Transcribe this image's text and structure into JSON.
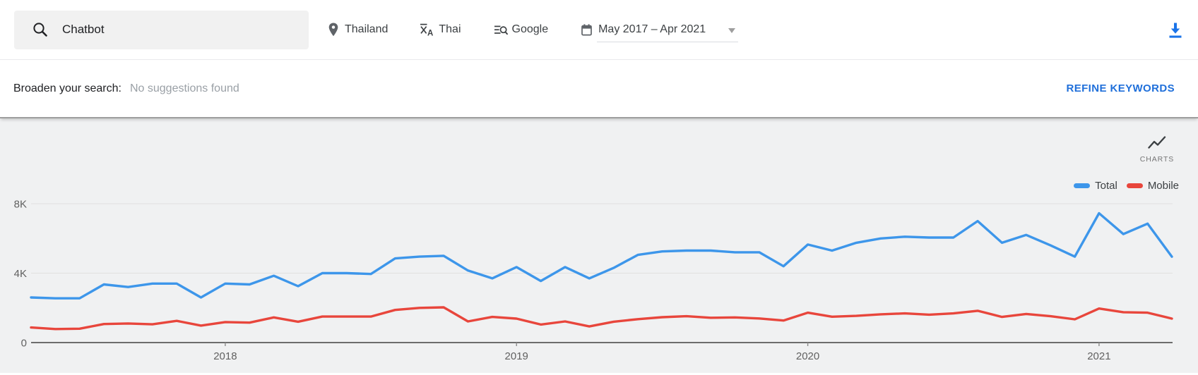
{
  "toolbar": {
    "search_value": "Chatbot",
    "location": "Thailand",
    "language": "Thai",
    "engine": "Google",
    "date_range": "May 2017 – Apr 2021"
  },
  "suggestions": {
    "label": "Broaden your search:",
    "message": "No suggestions found",
    "refine_label": "REFINE KEYWORDS"
  },
  "chart": {
    "widget_label": "CHARTS"
  },
  "colors": {
    "accent_blue": "#1a73e8",
    "refine_blue": "#1f6fda",
    "chart_background": "#f0f1f2",
    "grid_line": "#e0e0e0",
    "axis_line": "#6d6d6d",
    "axis_label": "#616161"
  },
  "chart_data": {
    "type": "line",
    "x": [
      "May 2017",
      "Jun 2017",
      "Jul 2017",
      "Aug 2017",
      "Sep 2017",
      "Oct 2017",
      "Nov 2017",
      "Dec 2017",
      "Jan 2018",
      "Feb 2018",
      "Mar 2018",
      "Apr 2018",
      "May 2018",
      "Jun 2018",
      "Jul 2018",
      "Aug 2018",
      "Sep 2018",
      "Oct 2018",
      "Nov 2018",
      "Dec 2018",
      "Jan 2019",
      "Feb 2019",
      "Mar 2019",
      "Apr 2019",
      "May 2019",
      "Jun 2019",
      "Jul 2019",
      "Aug 2019",
      "Sep 2019",
      "Oct 2019",
      "Nov 2019",
      "Dec 2019",
      "Jan 2020",
      "Feb 2020",
      "Mar 2020",
      "Apr 2020",
      "May 2020",
      "Jun 2020",
      "Jul 2020",
      "Aug 2020",
      "Sep 2020",
      "Oct 2020",
      "Nov 2020",
      "Dec 2020",
      "Jan 2021",
      "Feb 2021",
      "Mar 2021",
      "Apr 2021"
    ],
    "series": [
      {
        "name": "Total",
        "color": "#3d96ea",
        "values": [
          2600,
          2550,
          2550,
          3350,
          3200,
          3400,
          3400,
          2600,
          3400,
          3350,
          3850,
          3250,
          4000,
          4000,
          3950,
          4850,
          4950,
          5000,
          4150,
          3700,
          4350,
          3550,
          4350,
          3700,
          4300,
          5050,
          5250,
          5300,
          5300,
          5200,
          5200,
          4400,
          5650,
          5300,
          5750,
          6000,
          6100,
          6050,
          6050,
          7000,
          5750,
          6200,
          5600,
          4950,
          7450,
          6250,
          6850,
          4950
        ]
      },
      {
        "name": "Mobile",
        "color": "#e8463c",
        "values": [
          870,
          780,
          800,
          1070,
          1100,
          1050,
          1250,
          980,
          1180,
          1150,
          1450,
          1200,
          1500,
          1500,
          1500,
          1880,
          2000,
          2030,
          1220,
          1480,
          1380,
          1040,
          1220,
          930,
          1200,
          1350,
          1460,
          1520,
          1430,
          1450,
          1390,
          1270,
          1720,
          1490,
          1540,
          1630,
          1680,
          1610,
          1680,
          1830,
          1480,
          1650,
          1520,
          1340,
          1960,
          1750,
          1720,
          1380
        ]
      }
    ],
    "y_ticks": [
      {
        "value": 0,
        "label": "0"
      },
      {
        "value": 4000,
        "label": "4K"
      },
      {
        "value": 8000,
        "label": "8K"
      }
    ],
    "x_ticks": [
      {
        "label": "2018",
        "month_index": 8
      },
      {
        "label": "2019",
        "month_index": 20
      },
      {
        "label": "2020",
        "month_index": 32
      },
      {
        "label": "2021",
        "month_index": 44
      }
    ],
    "ylim": [
      0,
      8000
    ],
    "grid": "horizontal",
    "legend_position": "top-right"
  }
}
